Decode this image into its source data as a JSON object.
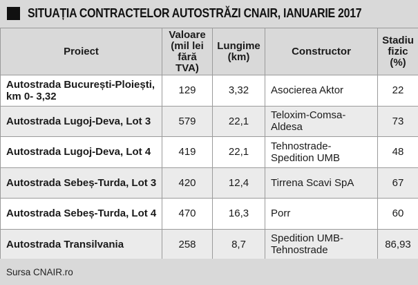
{
  "title": "SITUAȚIA CONTRACTELOR AUTOSTRĂZI CNAIR, IANUARIE 2017",
  "headers": {
    "proiect": "Proiect",
    "valoare": "Valoare (mil lei fără TVA)",
    "lungime": "Lungime (km)",
    "constructor": "Constructor",
    "stadiu": "Stadiu fizic (%)"
  },
  "rows": [
    {
      "proiect": "Autostrada București-Ploiești, km 0- 3,32",
      "valoare": "129",
      "lungime": "3,32",
      "constructor": "Asocierea Aktor",
      "stadiu": "22"
    },
    {
      "proiect": "Autostrada Lugoj-Deva, Lot 3",
      "valoare": "579",
      "lungime": "22,1",
      "constructor": "Teloxim-Comsa-Aldesa",
      "stadiu": "73"
    },
    {
      "proiect": "Autostrada Lugoj-Deva, Lot 4",
      "valoare": "419",
      "lungime": "22,1",
      "constructor": "Tehnostrade-Spedition UMB",
      "stadiu": "48"
    },
    {
      "proiect": "Autostrada Sebeș-Turda, Lot 3",
      "valoare": "420",
      "lungime": "12,4",
      "constructor": "Tirrena Scavi SpA",
      "stadiu": "67"
    },
    {
      "proiect": "Autostrada Sebeș-Turda, Lot 4",
      "valoare": "470",
      "lungime": "16,3",
      "constructor": "Porr",
      "stadiu": "60"
    },
    {
      "proiect": "Autostrada Transilvania",
      "valoare": "258",
      "lungime": "8,7",
      "constructor": "Spedition UMB-Tehnostrade",
      "stadiu": "86,93"
    }
  ],
  "source": "Sursa CNAIR.ro",
  "colors": {
    "header_bg": "#d9d9d9",
    "row_alt_bg": "#ebebeb",
    "row_bg": "#ffffff",
    "border": "#9a9a9a",
    "title_square": "#111111"
  }
}
